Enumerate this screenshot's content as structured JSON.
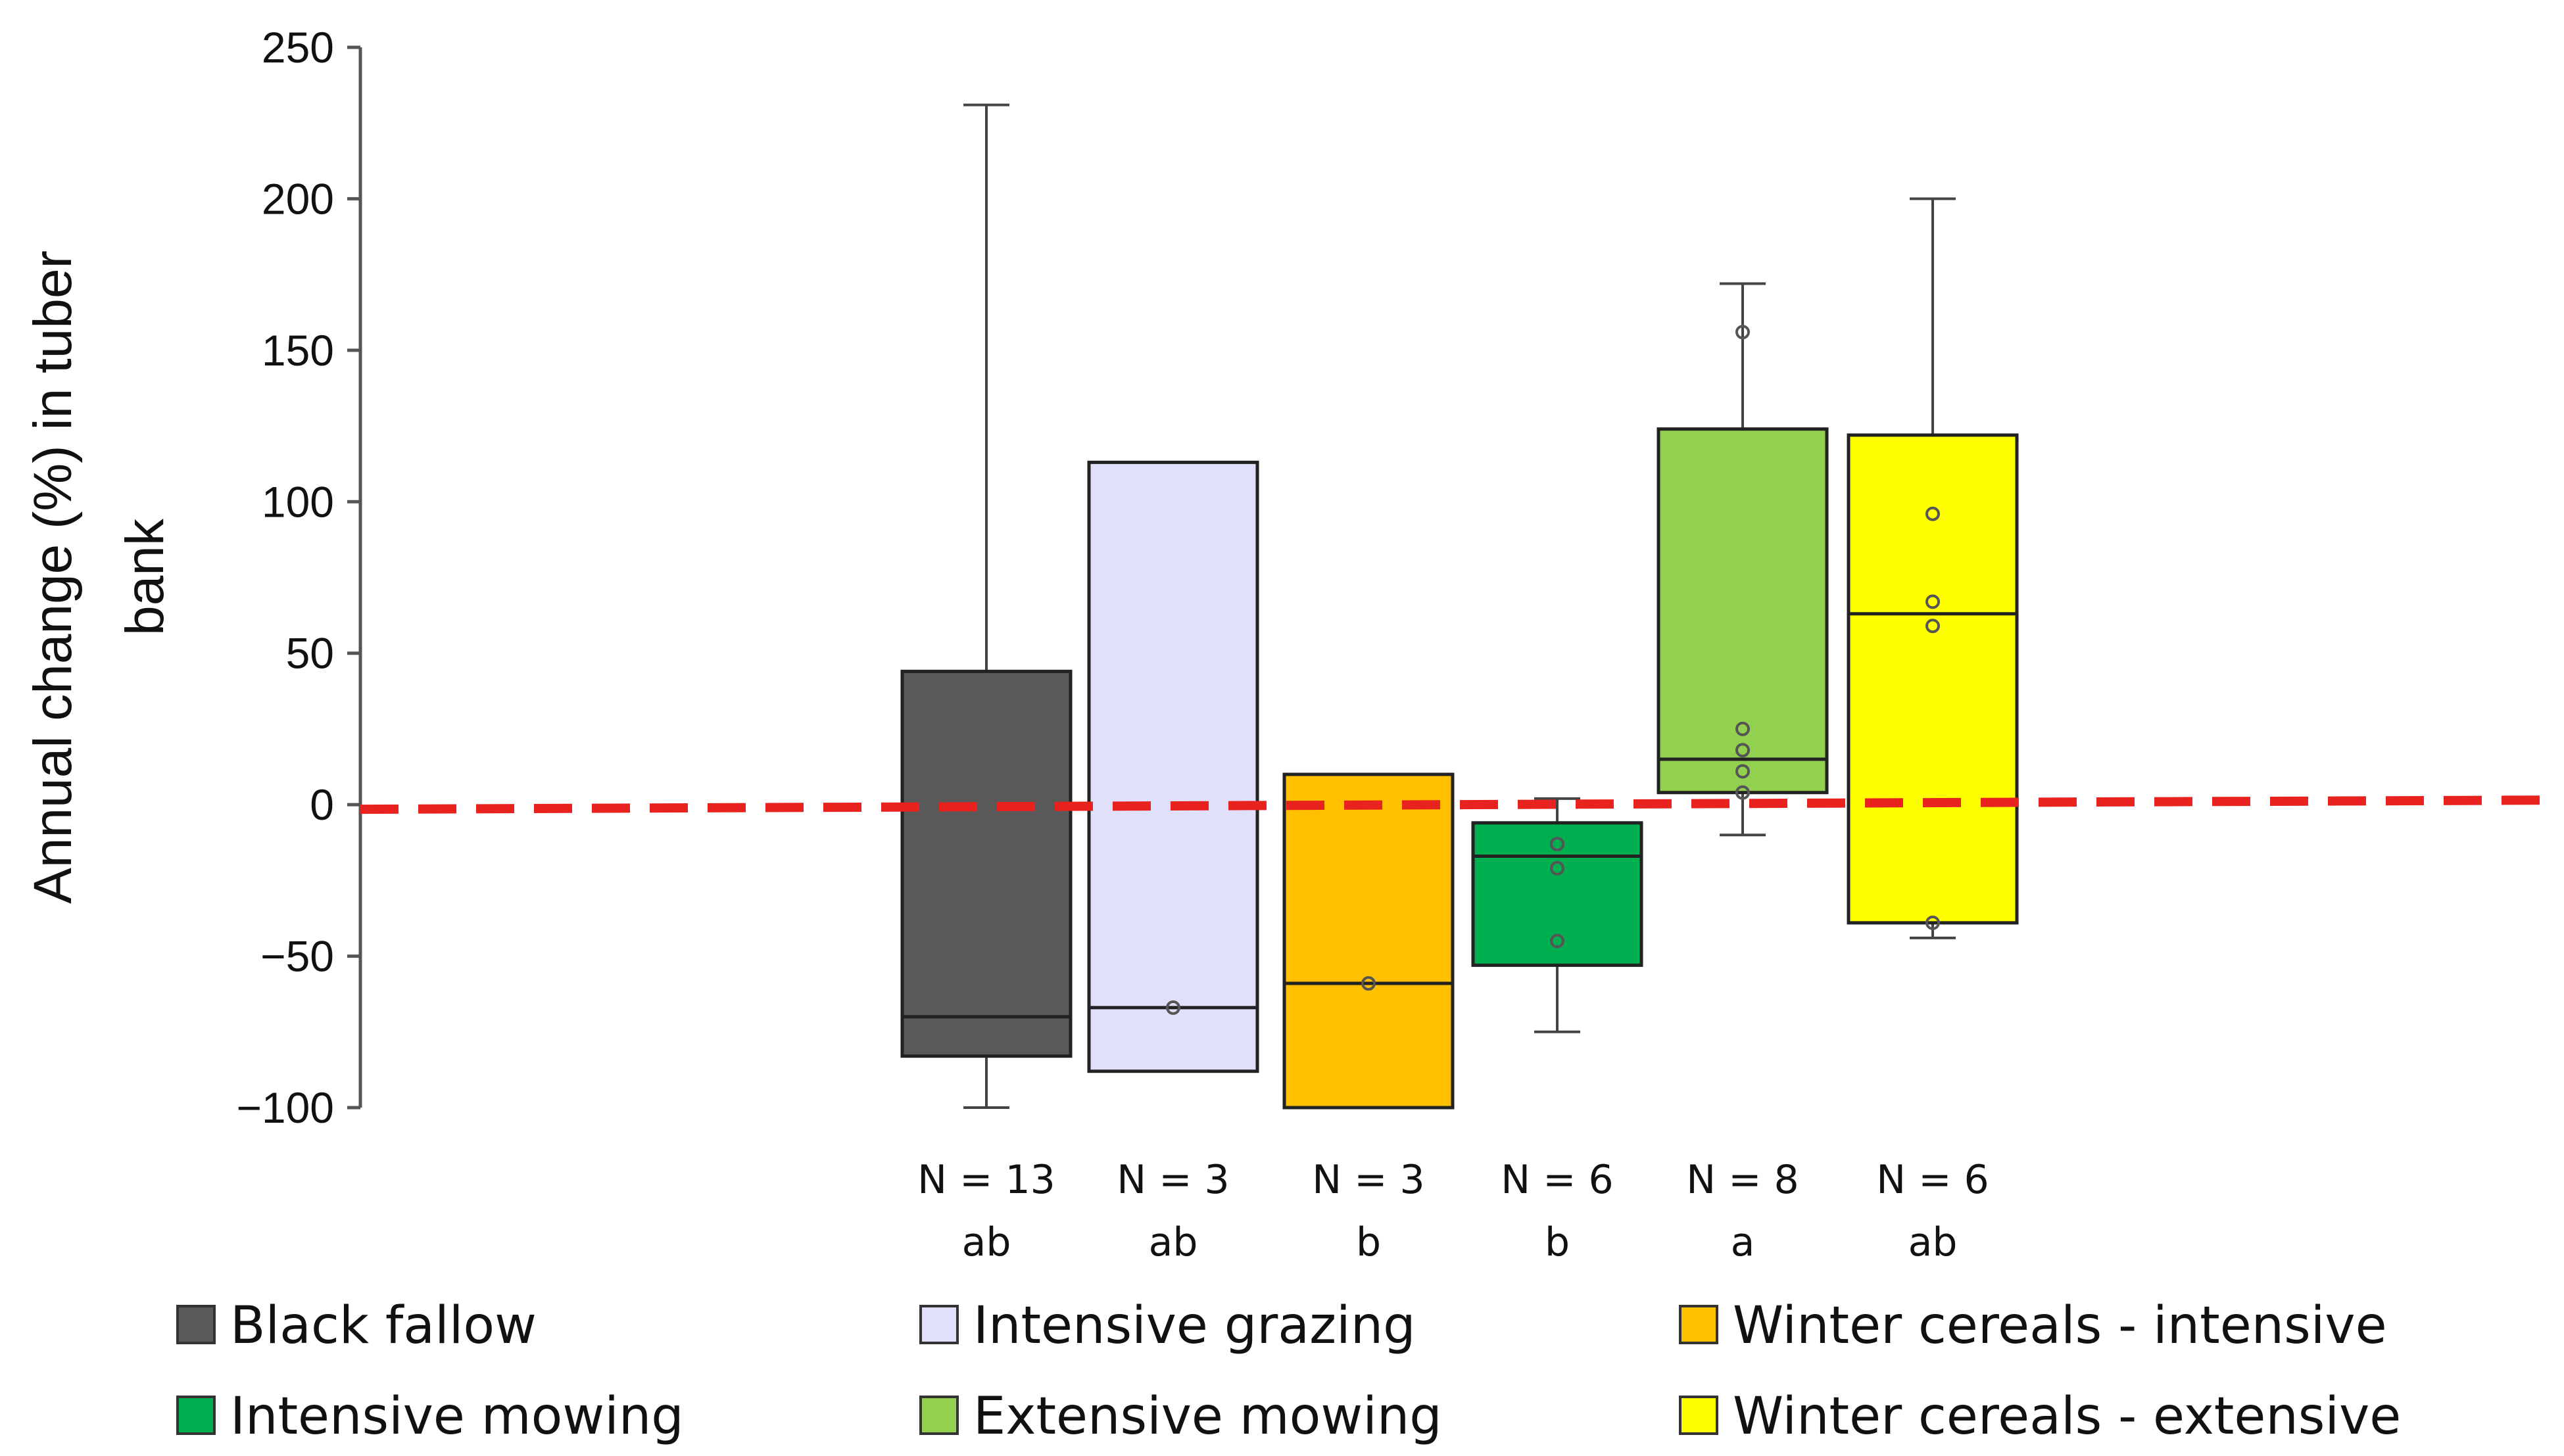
{
  "chart_data": {
    "type": "boxplot",
    "title": "",
    "xlabel": "",
    "ylabel_lines": [
      "Annual change (%) in tuber",
      "bank"
    ],
    "ylim": [
      -100,
      250
    ],
    "yticks": [
      250,
      200,
      150,
      100,
      50,
      0,
      -50,
      -100
    ],
    "ytick_labels": [
      "250",
      "200",
      "150",
      "100",
      "50",
      "0",
      "−50",
      "−100"
    ],
    "reference_line": {
      "y": 0,
      "color": "#e8231f",
      "style": "dashed"
    },
    "groups": [
      {
        "name": "Black fallow",
        "color": "#595959",
        "n_label": "N = 13",
        "letters": "ab",
        "whisker_low": -100,
        "q1": -83,
        "median": -70,
        "q3": 44,
        "whisker_high": 231,
        "points": []
      },
      {
        "name": "Intensive grazing",
        "color": "#e0e0fa",
        "n_label": "N = 3",
        "letters": "ab",
        "whisker_low": -88,
        "q1": -88,
        "median": -67,
        "q3": 113,
        "whisker_high": 113,
        "points": [
          -67
        ]
      },
      {
        "name": "Winter cereals - intensive",
        "color": "#ffc000",
        "n_label": "N = 3",
        "letters": "b",
        "whisker_low": -100,
        "q1": -100,
        "median": -59,
        "q3": 10,
        "whisker_high": 10,
        "points": [
          -59
        ]
      },
      {
        "name": "Intensive mowing",
        "color": "#00b050",
        "n_label": "N = 6",
        "letters": "b",
        "whisker_low": -75,
        "q1": -53,
        "median": -17,
        "q3": -6,
        "whisker_high": 2,
        "points": [
          -13,
          -21,
          -45
        ]
      },
      {
        "name": "Extensive mowing",
        "color": "#92d050",
        "n_label": "N = 8",
        "letters": "a",
        "whisker_low": -10,
        "q1": 4,
        "median": 15,
        "q3": 124,
        "whisker_high": 172,
        "points": [
          156,
          25,
          18,
          11,
          4
        ]
      },
      {
        "name": "Winter cereals - extensive",
        "color": "#ffff00",
        "n_label": "N = 6",
        "letters": "ab",
        "whisker_low": -44,
        "q1": -39,
        "median": 63,
        "q3": 122,
        "whisker_high": 200,
        "points": [
          96,
          67,
          59,
          -39
        ]
      }
    ],
    "legend": [
      {
        "label": "Black fallow",
        "color": "#595959"
      },
      {
        "label": "Intensive grazing",
        "color": "#e0e0fa"
      },
      {
        "label": "Winter cereals - intensive",
        "color": "#ffc000"
      },
      {
        "label": "Intensive mowing",
        "color": "#00b050"
      },
      {
        "label": "Extensive mowing",
        "color": "#92d050"
      },
      {
        "label": "Winter cereals - extensive",
        "color": "#ffff00"
      }
    ]
  }
}
